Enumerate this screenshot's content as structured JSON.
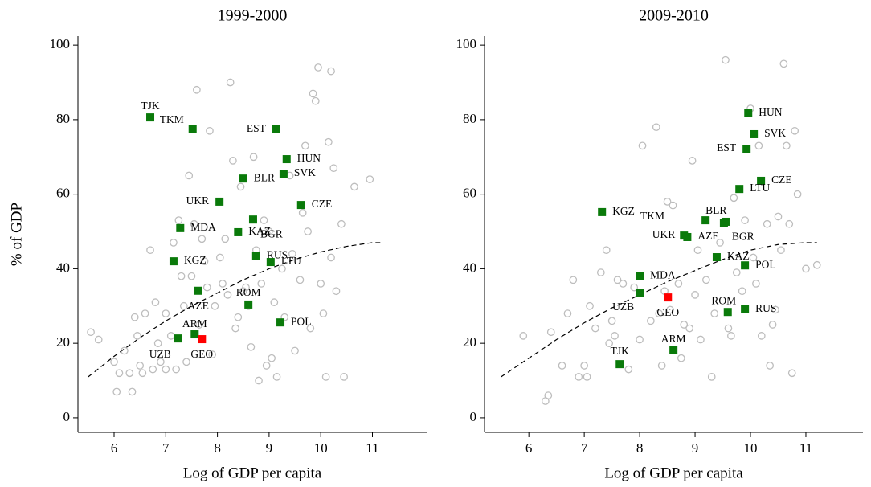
{
  "chart_data": [
    {
      "type": "scatter",
      "title": "1999-2000",
      "x_label": "Log of GDP per capita",
      "y_label": "% of GDP",
      "xlim": [
        5.3,
        12.05
      ],
      "ylim": [
        -3.9,
        102.4
      ],
      "xticks": [
        6,
        7,
        8,
        9,
        10,
        11
      ],
      "yticks": [
        0,
        20,
        40,
        60,
        80,
        100
      ],
      "series": [
        {
          "color": "#bdbdbd",
          "marker": "circle",
          "x": [
            5.55,
            5.7,
            6.0,
            6.05,
            6.1,
            6.2,
            6.3,
            6.35,
            6.4,
            6.45,
            6.5,
            6.55,
            6.6,
            6.7,
            6.75,
            6.8,
            6.85,
            6.9,
            7.0,
            7.0,
            7.1,
            7.15,
            7.2,
            7.25,
            7.3,
            7.35,
            7.4,
            7.45,
            7.5,
            7.55,
            7.6,
            7.7,
            7.75,
            7.8,
            7.85,
            7.9,
            7.95,
            8.05,
            8.1,
            8.2,
            8.25,
            8.3,
            8.35,
            8.4,
            8.45,
            8.5,
            8.55,
            8.6,
            8.65,
            8.7,
            8.75,
            8.8,
            8.85,
            8.9,
            8.95,
            9.0,
            9.05,
            9.1,
            9.15,
            9.25,
            9.3,
            9.4,
            9.5,
            9.6,
            9.7,
            9.75,
            9.8,
            9.85,
            9.9,
            9.95,
            10.0,
            10.05,
            10.1,
            10.15,
            10.2,
            10.2,
            10.25,
            10.3,
            10.4,
            10.45,
            10.65,
            10.95,
            9.65,
            8.15,
            7.65,
            9.45
          ],
          "values": [
            23,
            21,
            15,
            7,
            12,
            18,
            12,
            7,
            27,
            22,
            14,
            12,
            28,
            45,
            13,
            31,
            20,
            15,
            13,
            28,
            22,
            47,
            13,
            53,
            38,
            30,
            15,
            65,
            38,
            52,
            88,
            48,
            42,
            35,
            77,
            17,
            30,
            43,
            36,
            33,
            90,
            69,
            24,
            27,
            62,
            34,
            35,
            30,
            19,
            70,
            45,
            10,
            36,
            53,
            14,
            50,
            16,
            31,
            11,
            40,
            27,
            65,
            18,
            37,
            73,
            50,
            24,
            87,
            85,
            94,
            36,
            28,
            11,
            74,
            93,
            43,
            67,
            34,
            52,
            11,
            62,
            64,
            55,
            48,
            25,
            44
          ]
        },
        {
          "color": "#0a7a0a",
          "marker": "square",
          "x": [
            6.7,
            7.52,
            9.14,
            9.34,
            8.5,
            9.28,
            8.04,
            9.62,
            7.28,
            8.4,
            8.69,
            8.75,
            9.03,
            7.15,
            7.63,
            8.6,
            9.22,
            7.56,
            7.24
          ],
          "values": [
            80.6,
            77.4,
            77.4,
            69.4,
            64.2,
            65.5,
            58.0,
            57.1,
            50.9,
            49.8,
            53.2,
            43.5,
            41.8,
            42.0,
            34.1,
            30.4,
            25.6,
            22.4,
            21.3
          ],
          "labels": [
            "TJK",
            "TKM",
            "EST",
            "HUN",
            "BLR",
            "SVK",
            "UKR",
            "CZE",
            "MDA",
            "KAZ",
            "BGR",
            "RUS",
            "LTU",
            "KGZ",
            "AZE",
            "ROM",
            "POL",
            "ARM",
            "UZB"
          ]
        },
        {
          "color": "#ff0000",
          "marker": "square",
          "x": [
            7.7
          ],
          "values": [
            21.1
          ],
          "labels": [
            "GEO"
          ]
        }
      ],
      "fit": {
        "style": "dashed",
        "x": [
          5.5,
          6,
          6.5,
          7,
          7.5,
          8,
          8.5,
          9,
          9.5,
          10,
          10.5,
          11,
          11.2
        ],
        "values": [
          11,
          16.5,
          21.5,
          26,
          30,
          33.5,
          37,
          40,
          42.5,
          44.5,
          46,
          47,
          47
        ]
      }
    },
    {
      "type": "scatter",
      "title": "2009-2010",
      "x_label": "Log of GDP per capita",
      "xlim": [
        5.2,
        12.03
      ],
      "ylim": [
        -3.9,
        102.4
      ],
      "xticks": [
        6,
        7,
        8,
        9,
        10,
        11
      ],
      "yticks": [
        0,
        20,
        40,
        60,
        80,
        100
      ],
      "series": [
        {
          "color": "#bdbdbd",
          "marker": "circle",
          "x": [
            5.9,
            6.3,
            6.35,
            6.4,
            6.6,
            6.7,
            6.8,
            6.9,
            7.0,
            7.05,
            7.1,
            7.2,
            7.3,
            7.4,
            7.45,
            7.5,
            7.55,
            7.6,
            7.7,
            7.8,
            7.9,
            8.0,
            8.05,
            8.2,
            8.3,
            8.35,
            8.4,
            8.5,
            8.55,
            8.6,
            8.7,
            8.75,
            8.8,
            8.9,
            8.95,
            9.0,
            9.05,
            9.1,
            9.2,
            9.3,
            9.35,
            9.45,
            9.55,
            9.6,
            9.7,
            9.75,
            9.85,
            9.9,
            10.0,
            10.05,
            10.1,
            10.15,
            10.2,
            10.3,
            10.35,
            10.4,
            10.5,
            10.55,
            10.6,
            10.65,
            10.7,
            10.75,
            10.8,
            10.85,
            11.0,
            11.2,
            10.45,
            9.65,
            8.45
          ],
          "values": [
            22,
            4.5,
            6,
            23,
            14,
            28,
            37,
            11,
            14,
            11,
            30,
            24,
            39,
            45,
            20,
            26,
            22,
            37,
            36,
            13,
            35,
            21,
            73,
            26,
            78,
            28,
            14,
            58,
            29,
            57,
            36,
            16,
            25,
            24,
            69,
            33,
            45,
            21,
            37,
            11,
            28,
            47,
            96,
            24,
            59,
            39,
            34,
            53,
            83,
            43,
            36,
            73,
            22,
            52,
            14,
            25,
            54,
            45,
            95,
            73,
            52,
            12,
            77,
            60,
            40,
            41,
            29,
            22,
            34
          ]
        },
        {
          "color": "#0a7a0a",
          "marker": "square",
          "x": [
            9.96,
            10.06,
            9.93,
            10.19,
            9.8,
            7.32,
            9.19,
            9.55,
            8.8,
            8.86,
            9.52,
            9.39,
            8.0,
            9.9,
            8.0,
            9.59,
            9.9,
            8.61,
            7.64
          ],
          "values": [
            81.7,
            76.1,
            72.2,
            63.6,
            61.4,
            55.2,
            53.0,
            52.6,
            48.9,
            48.5,
            52.3,
            43.1,
            38.1,
            40.9,
            33.6,
            28.4,
            29.1,
            18.1,
            14.4
          ],
          "labels": [
            "HUN",
            "SVK",
            "EST",
            "CZE",
            "LTU",
            "KGZ",
            "BLR",
            "TKM",
            "UKR",
            "AZE",
            "BGR",
            "KAZ",
            "MDA",
            "POL",
            "UZB",
            "ROM",
            "RUS",
            "ARM",
            "TJK"
          ]
        },
        {
          "color": "#ff0000",
          "marker": "square",
          "x": [
            8.51
          ],
          "values": [
            32.3
          ],
          "labels": [
            "GEO"
          ]
        }
      ],
      "fit": {
        "style": "dashed",
        "x": [
          5.5,
          6,
          6.5,
          7,
          7.5,
          8,
          8.5,
          9,
          9.5,
          10,
          10.5,
          11,
          11.2
        ],
        "values": [
          11,
          16,
          21,
          25.5,
          29.5,
          33,
          36.5,
          39.5,
          42.5,
          45,
          46.5,
          47,
          47
        ]
      }
    }
  ]
}
